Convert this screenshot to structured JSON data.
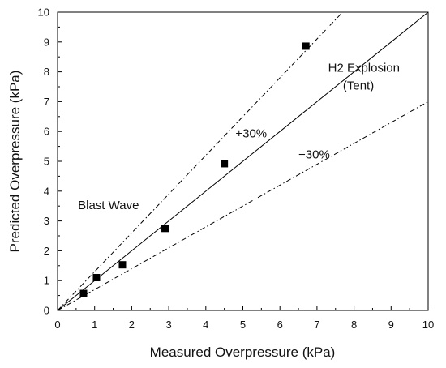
{
  "chart_data": {
    "type": "scatter",
    "xlabel": "Measured Overpressure (kPa)",
    "ylabel": "Predicted Overpressure (kPa)",
    "xlim": [
      0,
      10
    ],
    "ylim": [
      0,
      10
    ],
    "xticks": [
      "0",
      "1",
      "2",
      "3",
      "4",
      "5",
      "6",
      "7",
      "8",
      "9",
      "10"
    ],
    "yticks": [
      "0",
      "1",
      "2",
      "3",
      "4",
      "5",
      "6",
      "7",
      "8",
      "9",
      "10"
    ],
    "grid": false,
    "series": [
      {
        "marker": "square",
        "color": "#000000",
        "points": [
          {
            "x": 0.7,
            "y": 0.57
          },
          {
            "x": 1.05,
            "y": 1.1
          },
          {
            "x": 1.75,
            "y": 1.53
          },
          {
            "x": 2.9,
            "y": 2.75
          },
          {
            "x": 4.5,
            "y": 4.92
          },
          {
            "x": 6.7,
            "y": 8.86
          }
        ]
      }
    ],
    "reference_lines": [
      {
        "slope": 1.0,
        "style": "solid"
      },
      {
        "slope": 1.3,
        "style": "dash-dot"
      },
      {
        "slope": 0.7,
        "style": "dash-dot"
      }
    ],
    "annotations": [
      {
        "text": "H2 Explosion",
        "x": 7.3,
        "y": 8.0
      },
      {
        "text": "(Tent)",
        "x": 7.7,
        "y": 7.4
      },
      {
        "text": "+30%",
        "x": 4.8,
        "y": 5.8
      },
      {
        "text": "−30%",
        "x": 6.5,
        "y": 5.1
      },
      {
        "text": "Blast Wave",
        "x": 0.55,
        "y": 3.4
      }
    ]
  }
}
